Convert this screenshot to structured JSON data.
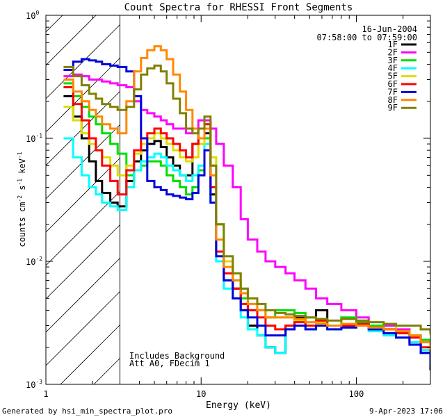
{
  "chart_data": {
    "type": "line",
    "title": "Count Spectra for RHESSI Front Segments",
    "xlabel": "Energy (keV)",
    "ylabel_prefix": "counts cm",
    "ylabel_parts": [
      "counts cm",
      "-2",
      " s",
      "-1",
      " keV",
      "-1"
    ],
    "xscale": "log",
    "yscale": "log",
    "xlim": [
      1,
      300
    ],
    "ylim": [
      0.001,
      1
    ],
    "x_tick_labels": [
      {
        "value": 1,
        "label": "1"
      },
      {
        "value": 10,
        "label": "10"
      },
      {
        "value": 100,
        "label": "100"
      }
    ],
    "y_tick_labels": [
      {
        "value": 1,
        "mant": "10",
        "exp": "0"
      },
      {
        "value": 0.1,
        "mant": "10",
        "exp": "-1"
      },
      {
        "value": 0.01,
        "mant": "10",
        "exp": "-2"
      },
      {
        "value": 0.001,
        "mant": "10",
        "exp": "-3"
      }
    ],
    "date": "16-Jun-2004",
    "time_range": "07:58:00 to 07:59:00",
    "annotations": [
      "Includes Background",
      "Att A0, FDecim 1"
    ],
    "hatched_region_keV": [
      1,
      3
    ],
    "series": [
      {
        "name": "1F",
        "color": "#000000",
        "x": [
          1.3,
          1.5,
          1.7,
          1.9,
          2.1,
          2.3,
          2.6,
          2.9,
          3.3,
          3.7,
          4.1,
          4.5,
          5.0,
          5.5,
          6.0,
          6.6,
          7.3,
          8.0,
          8.8,
          9.6,
          10.5,
          11.5,
          12.5,
          14,
          16,
          18,
          20,
          23,
          26,
          30,
          35,
          40,
          47,
          55,
          65,
          80,
          100,
          120,
          150,
          180,
          220,
          260,
          300
        ],
        "y": [
          0.22,
          0.15,
          0.1,
          0.065,
          0.045,
          0.036,
          0.03,
          0.028,
          0.045,
          0.065,
          0.08,
          0.09,
          0.095,
          0.085,
          0.07,
          0.06,
          0.05,
          0.05,
          0.09,
          0.12,
          0.11,
          0.035,
          0.012,
          0.007,
          0.006,
          0.004,
          0.003,
          0.0025,
          0.002,
          0.0018,
          0.003,
          0.0035,
          0.003,
          0.004,
          0.003,
          0.003,
          0.0032,
          0.003,
          0.0028,
          0.0026,
          0.0022,
          0.0018,
          0.0013
        ]
      },
      {
        "name": "2F",
        "color": "#ff00ff",
        "x": [
          1.3,
          1.5,
          1.7,
          1.9,
          2.1,
          2.3,
          2.6,
          2.9,
          3.3,
          3.7,
          4.1,
          4.5,
          5.0,
          5.5,
          6.0,
          6.6,
          7.3,
          8.0,
          8.8,
          9.6,
          10.5,
          11.5,
          12.5,
          14,
          16,
          18,
          20,
          23,
          26,
          30,
          35,
          40,
          47,
          55,
          65,
          80,
          100,
          120,
          150,
          180,
          220,
          260,
          300
        ],
        "y": [
          0.32,
          0.33,
          0.32,
          0.3,
          0.3,
          0.29,
          0.28,
          0.27,
          0.26,
          0.2,
          0.17,
          0.16,
          0.15,
          0.14,
          0.13,
          0.12,
          0.12,
          0.11,
          0.12,
          0.14,
          0.14,
          0.12,
          0.09,
          0.06,
          0.04,
          0.022,
          0.015,
          0.012,
          0.01,
          0.009,
          0.008,
          0.007,
          0.006,
          0.005,
          0.0045,
          0.004,
          0.0035,
          0.003,
          0.003,
          0.0028,
          0.0025,
          0.0022,
          0.002
        ]
      },
      {
        "name": "3F",
        "color": "#00dd00",
        "x": [
          1.3,
          1.5,
          1.7,
          1.9,
          2.1,
          2.3,
          2.6,
          2.9,
          3.3,
          3.7,
          4.1,
          4.5,
          5.0,
          5.5,
          6.0,
          6.6,
          7.3,
          8.0,
          8.8,
          9.6,
          10.5,
          11.5,
          12.5,
          14,
          16,
          18,
          20,
          23,
          26,
          30,
          35,
          40,
          47,
          55,
          65,
          80,
          100,
          120,
          150,
          180,
          220,
          260,
          300
        ],
        "y": [
          0.28,
          0.22,
          0.18,
          0.15,
          0.13,
          0.11,
          0.09,
          0.075,
          0.05,
          0.055,
          0.06,
          0.065,
          0.065,
          0.06,
          0.05,
          0.045,
          0.04,
          0.035,
          0.04,
          0.055,
          0.1,
          0.06,
          0.02,
          0.01,
          0.007,
          0.005,
          0.004,
          0.004,
          0.0035,
          0.004,
          0.004,
          0.0038,
          0.0035,
          0.0033,
          0.003,
          0.0035,
          0.0032,
          0.003,
          0.0028,
          0.0027,
          0.0025,
          0.0023,
          0.002
        ]
      },
      {
        "name": "4F",
        "color": "#00ffff",
        "x": [
          1.3,
          1.5,
          1.7,
          1.9,
          2.1,
          2.3,
          2.6,
          2.9,
          3.3,
          3.7,
          4.1,
          4.5,
          5.0,
          5.5,
          6.0,
          6.6,
          7.3,
          8.0,
          8.8,
          9.6,
          10.5,
          11.5,
          12.5,
          14,
          16,
          18,
          20,
          23,
          26,
          30,
          35,
          40,
          47,
          55,
          65,
          80,
          100,
          120,
          150,
          180,
          220,
          260,
          300
        ],
        "y": [
          0.1,
          0.07,
          0.05,
          0.04,
          0.035,
          0.03,
          0.028,
          0.026,
          0.04,
          0.055,
          0.065,
          0.07,
          0.075,
          0.07,
          0.06,
          0.055,
          0.05,
          0.045,
          0.05,
          0.06,
          0.09,
          0.03,
          0.01,
          0.006,
          0.005,
          0.0035,
          0.0028,
          0.0025,
          0.002,
          0.0018,
          0.0028,
          0.003,
          0.0028,
          0.0032,
          0.0028,
          0.0029,
          0.003,
          0.0027,
          0.0025,
          0.0024,
          0.0022,
          0.0019,
          0.0015
        ]
      },
      {
        "name": "5F",
        "color": "#dddd00",
        "x": [
          1.3,
          1.5,
          1.7,
          1.9,
          2.1,
          2.3,
          2.6,
          2.9,
          3.3,
          3.7,
          4.1,
          4.5,
          5.0,
          5.5,
          6.0,
          6.6,
          7.3,
          8.0,
          8.8,
          9.6,
          10.5,
          11.5,
          12.5,
          14,
          16,
          18,
          20,
          23,
          26,
          30,
          35,
          40,
          47,
          55,
          65,
          80,
          100,
          120,
          150,
          180,
          220,
          260,
          300
        ],
        "y": [
          0.18,
          0.14,
          0.11,
          0.09,
          0.08,
          0.07,
          0.06,
          0.05,
          0.06,
          0.075,
          0.09,
          0.1,
          0.11,
          0.1,
          0.09,
          0.08,
          0.07,
          0.065,
          0.07,
          0.09,
          0.13,
          0.07,
          0.02,
          0.01,
          0.008,
          0.006,
          0.005,
          0.004,
          0.0035,
          0.0035,
          0.0035,
          0.0033,
          0.003,
          0.0032,
          0.003,
          0.0031,
          0.003,
          0.0029,
          0.0028,
          0.003,
          0.003,
          0.0028,
          0.0025
        ]
      },
      {
        "name": "6F",
        "color": "#ff0000",
        "x": [
          1.3,
          1.5,
          1.7,
          1.9,
          2.1,
          2.3,
          2.6,
          2.9,
          3.3,
          3.7,
          4.1,
          4.5,
          5.0,
          5.5,
          6.0,
          6.6,
          7.3,
          8.0,
          8.8,
          9.6,
          10.5,
          11.5,
          12.5,
          14,
          16,
          18,
          20,
          23,
          26,
          30,
          35,
          40,
          47,
          55,
          65,
          80,
          100,
          120,
          150,
          180,
          220,
          260,
          300
        ],
        "y": [
          0.26,
          0.19,
          0.14,
          0.1,
          0.08,
          0.06,
          0.045,
          0.035,
          0.055,
          0.08,
          0.1,
          0.11,
          0.12,
          0.11,
          0.1,
          0.09,
          0.08,
          0.07,
          0.09,
          0.12,
          0.13,
          0.04,
          0.012,
          0.008,
          0.006,
          0.0045,
          0.004,
          0.0035,
          0.003,
          0.0028,
          0.003,
          0.0032,
          0.003,
          0.0033,
          0.003,
          0.003,
          0.0031,
          0.0029,
          0.0028,
          0.0026,
          0.0024,
          0.002,
          0.0016
        ]
      },
      {
        "name": "7F",
        "color": "#0000dd",
        "x": [
          1.3,
          1.5,
          1.7,
          1.9,
          2.1,
          2.3,
          2.6,
          2.9,
          3.3,
          3.7,
          4.1,
          4.5,
          5.0,
          5.5,
          6.0,
          6.6,
          7.3,
          8.0,
          8.8,
          9.6,
          10.5,
          11.5,
          12.5,
          14,
          16,
          18,
          20,
          23,
          26,
          30,
          35,
          40,
          47,
          55,
          65,
          80,
          100,
          120,
          150,
          180,
          220,
          260,
          300
        ],
        "y": [
          0.36,
          0.42,
          0.44,
          0.43,
          0.42,
          0.4,
          0.39,
          0.38,
          0.35,
          0.22,
          0.1,
          0.045,
          0.04,
          0.038,
          0.035,
          0.034,
          0.033,
          0.032,
          0.036,
          0.05,
          0.08,
          0.03,
          0.011,
          0.007,
          0.005,
          0.004,
          0.0035,
          0.003,
          0.0025,
          0.0025,
          0.0028,
          0.003,
          0.0028,
          0.003,
          0.0028,
          0.0029,
          0.003,
          0.0028,
          0.0026,
          0.0024,
          0.0021,
          0.0018,
          0.0014
        ]
      },
      {
        "name": "8F",
        "color": "#ff8800",
        "x": [
          1.3,
          1.5,
          1.7,
          1.9,
          2.1,
          2.3,
          2.6,
          2.9,
          3.3,
          3.7,
          4.1,
          4.5,
          5.0,
          5.5,
          6.0,
          6.6,
          7.3,
          8.0,
          8.8,
          9.6,
          10.5,
          11.5,
          12.5,
          14,
          16,
          18,
          20,
          23,
          26,
          30,
          35,
          40,
          47,
          55,
          65,
          80,
          100,
          120,
          150,
          180,
          220,
          260,
          300
        ],
        "y": [
          0.3,
          0.24,
          0.2,
          0.17,
          0.15,
          0.13,
          0.12,
          0.11,
          0.2,
          0.35,
          0.45,
          0.52,
          0.56,
          0.52,
          0.44,
          0.33,
          0.24,
          0.17,
          0.12,
          0.1,
          0.12,
          0.05,
          0.015,
          0.009,
          0.007,
          0.0055,
          0.0045,
          0.004,
          0.0035,
          0.0035,
          0.0035,
          0.0034,
          0.0032,
          0.0031,
          0.003,
          0.0031,
          0.003,
          0.0029,
          0.0028,
          0.0027,
          0.0025,
          0.0022,
          0.0019
        ]
      },
      {
        "name": "9F",
        "color": "#808000",
        "x": [
          1.3,
          1.5,
          1.7,
          1.9,
          2.1,
          2.3,
          2.6,
          2.9,
          3.3,
          3.7,
          4.1,
          4.5,
          5.0,
          5.5,
          6.0,
          6.6,
          7.3,
          8.0,
          8.8,
          9.6,
          10.5,
          11.5,
          12.5,
          14,
          16,
          18,
          20,
          23,
          26,
          30,
          35,
          40,
          47,
          55,
          65,
          80,
          100,
          120,
          150,
          180,
          220,
          260,
          300
        ],
        "y": [
          0.38,
          0.32,
          0.27,
          0.23,
          0.21,
          0.19,
          0.18,
          0.17,
          0.18,
          0.25,
          0.33,
          0.37,
          0.39,
          0.35,
          0.28,
          0.21,
          0.16,
          0.12,
          0.11,
          0.12,
          0.15,
          0.06,
          0.02,
          0.011,
          0.008,
          0.006,
          0.005,
          0.0045,
          0.004,
          0.0038,
          0.0037,
          0.0036,
          0.0035,
          0.0034,
          0.0033,
          0.0034,
          0.0033,
          0.0032,
          0.0031,
          0.003,
          0.003,
          0.0028,
          0.0026
        ]
      }
    ]
  },
  "footer": {
    "generated_by": "Generated by hsi_min_spectra_plot.pro",
    "timestamp": "9-Apr-2023 17:06"
  }
}
